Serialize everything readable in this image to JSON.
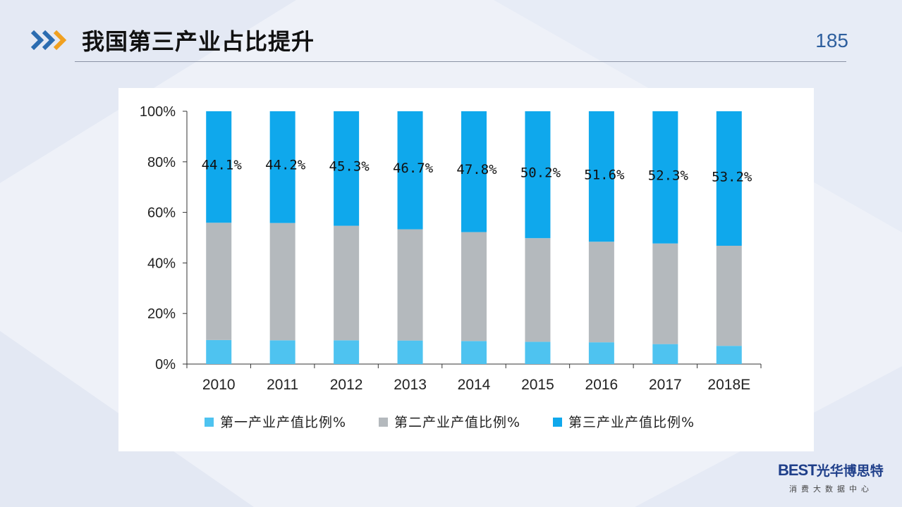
{
  "header": {
    "title": "我国第三产业占比提升",
    "page_number": "185"
  },
  "logo": {
    "brand": "BEST",
    "brand_cn": "光华博思特",
    "subtitle": "消费大数据中心"
  },
  "colors": {
    "accent_blue": "#2b6cb0",
    "accent_orange": "#f0a020",
    "primary": "#4ec3f0",
    "secondary": "#b4b9bd",
    "tertiary": "#0fa8ec"
  },
  "chart_data": {
    "type": "bar",
    "stacked": true,
    "categories": [
      "2010",
      "2011",
      "2012",
      "2013",
      "2014",
      "2015",
      "2016",
      "2017",
      "2018E"
    ],
    "series": [
      {
        "name": "第一产业产值比例%",
        "color": "#4ec3f0",
        "values": [
          9.5,
          9.4,
          9.4,
          9.3,
          9.1,
          8.8,
          8.6,
          7.9,
          7.2
        ]
      },
      {
        "name": "第二产业产值比例%",
        "color": "#b4b9bd",
        "values": [
          46.4,
          46.4,
          45.3,
          44.0,
          43.1,
          41.0,
          39.8,
          39.8,
          39.6
        ]
      },
      {
        "name": "第三产业产值比例%",
        "color": "#0fa8ec",
        "values": [
          44.1,
          44.2,
          45.3,
          46.7,
          47.8,
          50.2,
          51.6,
          52.3,
          53.2
        ]
      }
    ],
    "data_labels": [
      "44.1%",
      "44.2%",
      "45.3%",
      "46.7%",
      "47.8%",
      "50.2%",
      "51.6%",
      "52.3%",
      "53.2%"
    ],
    "yticks": [
      "0%",
      "20%",
      "40%",
      "60%",
      "80%",
      "100%"
    ],
    "ylim": [
      0,
      100
    ],
    "legend_position": "bottom",
    "grid": false
  }
}
